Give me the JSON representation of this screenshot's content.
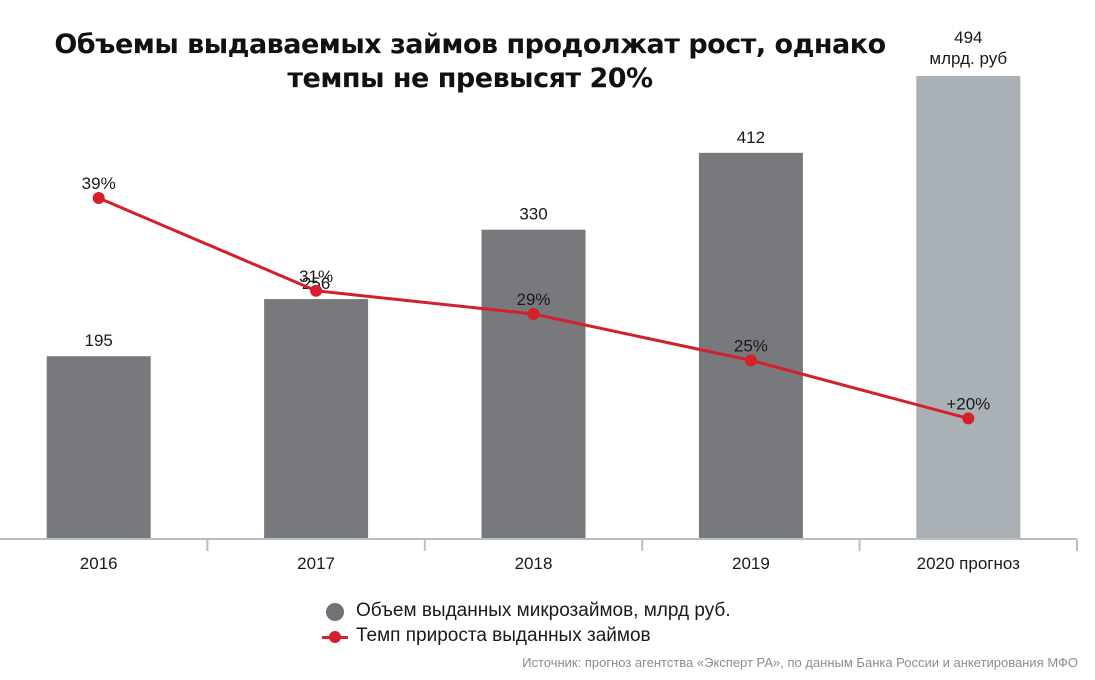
{
  "chart_data": {
    "type": "bar",
    "title_lines": [
      "Объемы выдаваемых займов продолжат рост, однако",
      "темпы не превысят 20%"
    ],
    "categories": [
      "2016",
      "2017",
      "2018",
      "2019",
      "2020 прогноз"
    ],
    "series": [
      {
        "name": "Объем выданных микрозаймов, млрд руб.",
        "kind": "bar",
        "values": [
          195,
          256,
          330,
          412,
          494
        ],
        "value_labels": [
          "195",
          "256",
          "330",
          "412",
          "494"
        ],
        "colors": [
          "#77797d",
          "#77797d",
          "#77797d",
          "#77797d",
          "#a9b1b7"
        ]
      },
      {
        "name": "Темп прироста выданных займов",
        "kind": "line",
        "values": [
          39,
          31,
          29,
          25,
          20
        ],
        "value_labels": [
          "39%",
          "31%",
          "29%",
          "25%",
          "+20%"
        ],
        "color": "#d4202a"
      }
    ],
    "last_bar_unit": "млрд. руб",
    "ylim_bars": [
      0,
      494
    ],
    "grid": false,
    "legend_position": "bottom-center"
  },
  "source": "Источник: прогноз агентства «Эксперт РА», по данным Банка России и анкетирования МФО"
}
